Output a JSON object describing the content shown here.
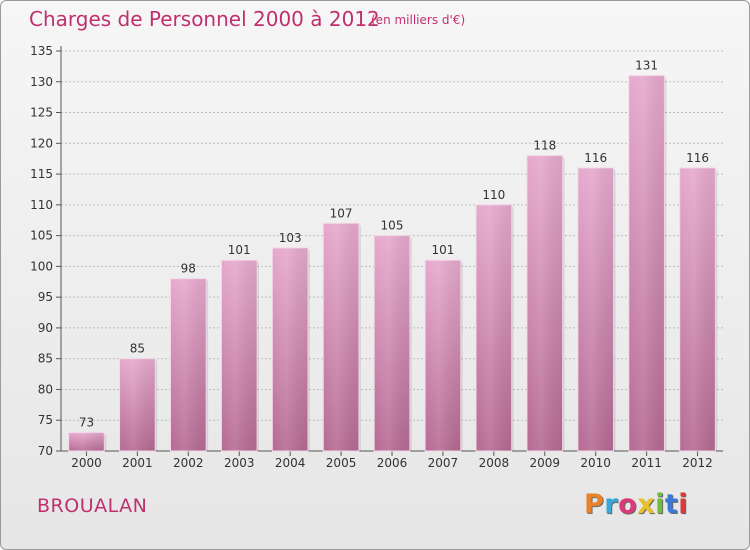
{
  "header": {
    "title": "Charges de Personnel 2000 à 2012",
    "subtitle": "(en milliers d'€)"
  },
  "footer": {
    "commune": "BROUALAN",
    "logo_text": "Proxiti",
    "logo_colors": [
      "#e8832b",
      "#3aa8d6",
      "#d93a7a",
      "#e8c12b",
      "#6bbf3a",
      "#3a7ad6",
      "#d93a3a"
    ]
  },
  "colors": {
    "bar_light": "#e6a9cd",
    "bar_dark": "#b56a93",
    "title": "#c0306e",
    "grid": "#bdbdbd"
  },
  "chart_data": {
    "type": "bar",
    "title": "Charges de Personnel 2000 à 2012",
    "subtitle": "(en milliers d'€)",
    "categories": [
      "2000",
      "2001",
      "2002",
      "2003",
      "2004",
      "2005",
      "2006",
      "2007",
      "2008",
      "2009",
      "2010",
      "2011",
      "2012"
    ],
    "values": [
      73,
      85,
      98,
      101,
      103,
      107,
      105,
      101,
      110,
      118,
      116,
      131,
      116
    ],
    "ylim": [
      70,
      135
    ],
    "yticks": [
      70,
      75,
      80,
      85,
      90,
      95,
      100,
      105,
      110,
      115,
      120,
      125,
      130,
      135
    ],
    "grid": true,
    "xlabel": "",
    "ylabel": ""
  }
}
